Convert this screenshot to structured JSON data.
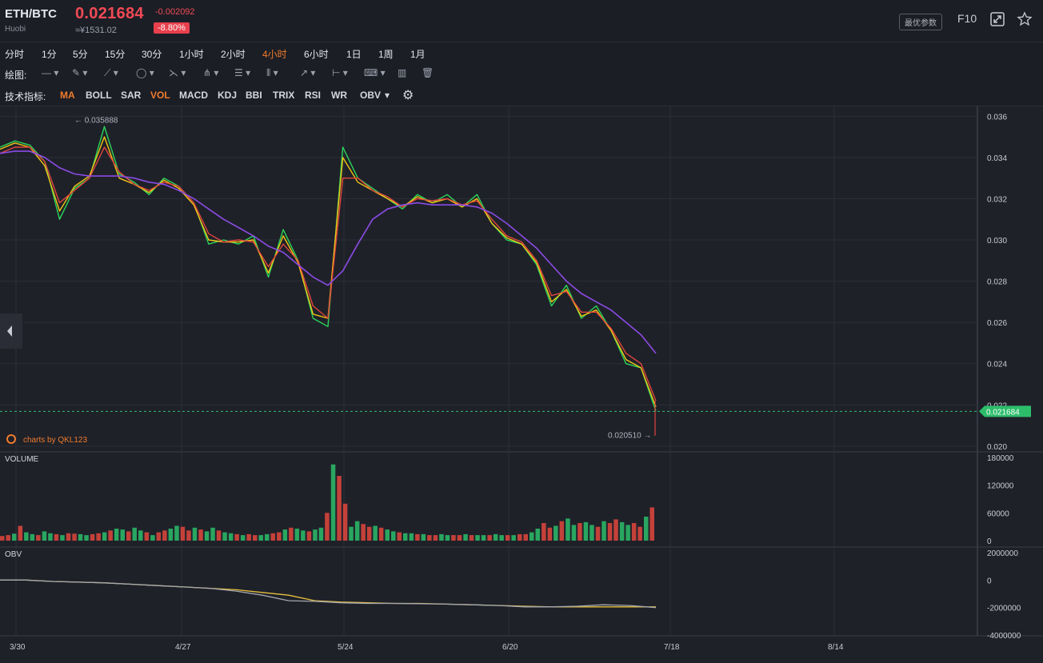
{
  "header": {
    "pair": "ETH/BTC",
    "exchange": "Huobi",
    "price": "0.021684",
    "cny_price": "≈¥1531.02",
    "change": "-0.002092",
    "change_pct": "-8.80%",
    "params_label": "最优参数",
    "f10_label": "F10",
    "accent_down": "#f04a55",
    "accent_active": "#f07b2c"
  },
  "timeframes": [
    "分时",
    "1分",
    "5分",
    "15分",
    "30分",
    "1小时",
    "2小时",
    "4小时",
    "6小时",
    "1日",
    "1周",
    "1月"
  ],
  "active_timeframe": "4小时",
  "drawing": {
    "label": "绘图:",
    "tools": [
      "line-icon",
      "pen-icon",
      "polyline-icon",
      "circle-icon",
      "fork-icon",
      "pattern-icon",
      "fib-icon",
      "grid-icon",
      "arrow-icon",
      "measure-icon",
      "label-icon",
      "bar-icon",
      "trash-icon"
    ]
  },
  "indicators": {
    "label": "技术指标:",
    "items": [
      "MA",
      "BOLL",
      "SAR",
      "VOL",
      "MACD",
      "KDJ",
      "BBI",
      "TRIX",
      "RSI",
      "WR",
      "OBV"
    ],
    "active": [
      "MA",
      "VOL"
    ]
  },
  "watermark": "charts by QKL123",
  "chart_data": [
    {
      "type": "line",
      "panel": "price",
      "price_axis": [
        "0.036",
        "0.034",
        "0.032",
        "0.030",
        "0.028",
        "0.026",
        "0.024",
        "0.022",
        "0.020"
      ],
      "ylim": [
        0.0198,
        0.0364
      ],
      "x_ticks": [
        "3/30",
        "4/27",
        "5/24",
        "6/20",
        "7/18",
        "8/14"
      ],
      "high_label": "0.035888",
      "low_label": "0.020510",
      "current_label": "0.021684",
      "current_value": 0.021684,
      "series": [
        {
          "color": "#2bd65a",
          "values": [
            0.0345,
            0.0348,
            0.0346,
            0.0338,
            0.031,
            0.0325,
            0.033,
            0.0355,
            0.0332,
            0.0328,
            0.0322,
            0.033,
            0.0326,
            0.0318,
            0.0298,
            0.03,
            0.0298,
            0.0302,
            0.0282,
            0.0305,
            0.029,
            0.0262,
            0.0258,
            0.0345,
            0.033,
            0.0325,
            0.032,
            0.0315,
            0.0322,
            0.0318,
            0.0322,
            0.0316,
            0.0322,
            0.0308,
            0.03,
            0.0298,
            0.0288,
            0.0268,
            0.0278,
            0.0262,
            0.0268,
            0.0256,
            0.024,
            0.0238,
            0.0217
          ]
        },
        {
          "color": "#f2c516",
          "values": [
            0.0344,
            0.0347,
            0.0345,
            0.0336,
            0.0314,
            0.0326,
            0.0331,
            0.035,
            0.033,
            0.0327,
            0.0323,
            0.0329,
            0.0325,
            0.0317,
            0.03,
            0.0299,
            0.0299,
            0.03,
            0.0284,
            0.0302,
            0.0289,
            0.0264,
            0.0262,
            0.034,
            0.0328,
            0.0324,
            0.032,
            0.0316,
            0.0321,
            0.0318,
            0.032,
            0.0316,
            0.032,
            0.0308,
            0.0301,
            0.0298,
            0.0289,
            0.027,
            0.0276,
            0.0263,
            0.0266,
            0.0256,
            0.0242,
            0.0238,
            0.0219
          ]
        },
        {
          "color": "#e2463d",
          "values": [
            0.0342,
            0.0345,
            0.0345,
            0.0338,
            0.0318,
            0.0324,
            0.033,
            0.0345,
            0.0333,
            0.0327,
            0.0324,
            0.0328,
            0.0326,
            0.0318,
            0.0303,
            0.0299,
            0.03,
            0.0299,
            0.0287,
            0.0298,
            0.029,
            0.0268,
            0.0262,
            0.033,
            0.033,
            0.0324,
            0.0321,
            0.0316,
            0.032,
            0.0319,
            0.032,
            0.0317,
            0.0319,
            0.031,
            0.0302,
            0.0299,
            0.029,
            0.0273,
            0.0275,
            0.0265,
            0.0265,
            0.0257,
            0.0245,
            0.024,
            0.0222
          ]
        },
        {
          "color": "#8a4be4",
          "values": [
            0.0342,
            0.0343,
            0.0343,
            0.034,
            0.0335,
            0.0332,
            0.0331,
            0.0331,
            0.0331,
            0.033,
            0.0328,
            0.0327,
            0.0324,
            0.032,
            0.0315,
            0.031,
            0.0306,
            0.0302,
            0.0297,
            0.0294,
            0.0288,
            0.0282,
            0.0278,
            0.0285,
            0.0298,
            0.031,
            0.0315,
            0.0317,
            0.0318,
            0.0317,
            0.0317,
            0.0317,
            0.0316,
            0.0313,
            0.0308,
            0.0302,
            0.0296,
            0.0288,
            0.028,
            0.0274,
            0.027,
            0.0266,
            0.026,
            0.0254,
            0.0245
          ]
        }
      ]
    },
    {
      "type": "bar",
      "panel": "volume",
      "title": "VOLUME",
      "y_axis": [
        "180000",
        "120000",
        "60000",
        "0"
      ],
      "ylim": [
        0,
        180000
      ],
      "values": [
        10000,
        12000,
        15000,
        32000,
        18000,
        14000,
        12000,
        20000,
        16000,
        14000,
        12000,
        16000,
        15000,
        14000,
        12000,
        14000,
        16000,
        18000,
        22000,
        26000,
        24000,
        20000,
        28000,
        22000,
        18000,
        12000,
        18000,
        22000,
        26000,
        32000,
        30000,
        22000,
        28000,
        24000,
        20000,
        28000,
        22000,
        18000,
        16000,
        14000,
        12000,
        14000,
        12000,
        12000,
        14000,
        16000,
        18000,
        24000,
        28000,
        26000,
        22000,
        20000,
        24000,
        28000,
        60000,
        165000,
        140000,
        80000,
        30000,
        42000,
        36000,
        30000,
        32000,
        28000,
        24000,
        20000,
        18000,
        16000,
        16000,
        14000,
        14000,
        12000,
        12000,
        14000,
        12000,
        12000,
        12000,
        14000,
        12000,
        12000,
        12000,
        12000,
        14000,
        12000,
        12000,
        12000,
        14000,
        14000,
        18000,
        26000,
        38000,
        28000,
        32000,
        42000,
        48000,
        34000,
        38000,
        40000,
        34000,
        30000,
        42000,
        38000,
        46000,
        40000,
        34000,
        38000,
        30000,
        52000,
        72000
      ]
    },
    {
      "type": "line",
      "panel": "obv",
      "title": "OBV",
      "y_axis": [
        "2000000",
        "0",
        "-2000000",
        "-4000000"
      ],
      "ylim": [
        -4000000,
        2000000
      ],
      "series": [
        {
          "color": "#e7c13c",
          "values": [
            0,
            0,
            -100000,
            -150000,
            -200000,
            -300000,
            -400000,
            -500000,
            -600000,
            -700000,
            -900000,
            -1100000,
            -1500000,
            -1600000,
            -1650000,
            -1700000,
            -1700000,
            -1750000,
            -1800000,
            -1850000,
            -1900000,
            -1950000,
            -1950000,
            -1950000,
            -1950000,
            -1950000
          ]
        },
        {
          "color": "#a5a8b0",
          "values": [
            0,
            0,
            -100000,
            -150000,
            -200000,
            -300000,
            -400000,
            -500000,
            -600000,
            -800000,
            -1100000,
            -1500000,
            -1550000,
            -1650000,
            -1700000,
            -1700000,
            -1720000,
            -1750000,
            -1800000,
            -1850000,
            -1950000,
            -1950000,
            -1900000,
            -1800000,
            -1850000,
            -2000000
          ]
        }
      ]
    }
  ]
}
